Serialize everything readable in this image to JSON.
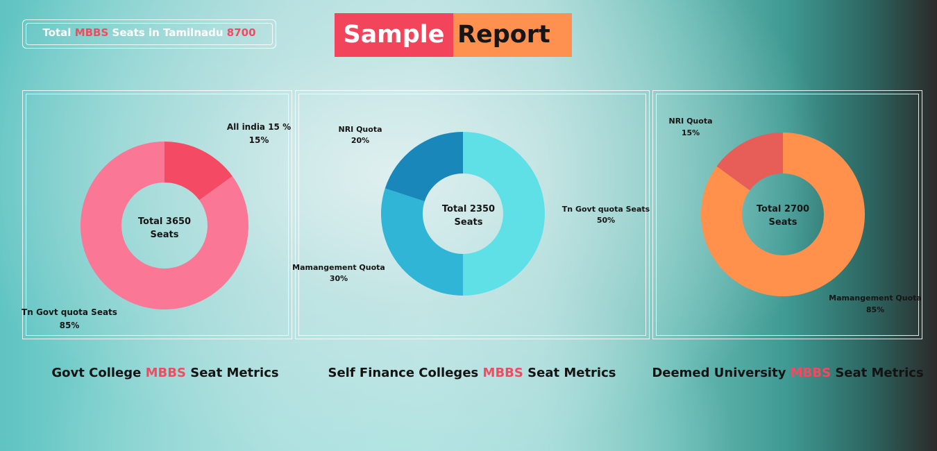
{
  "header": {
    "total_prefix": "Total",
    "total_highlight": "MBBS",
    "total_middle": "Seats in Tamilnadu",
    "total_value": "8700",
    "title_left": "Sample",
    "title_right": "Report"
  },
  "colors": {
    "highlight": "#f24b5f",
    "banner_left": "#f2455c",
    "banner_right": "#ff9150"
  },
  "sections": [
    {
      "prefix": "Govt College",
      "highlight": "MBBS",
      "suffix": "Seat Metrics"
    },
    {
      "prefix": "Self Finance Colleges",
      "highlight": "MBBS",
      "suffix": "Seat Metrics"
    },
    {
      "prefix": "Deemed University",
      "highlight": "MBBS",
      "suffix": "Seat Metrics"
    }
  ],
  "chart_data": [
    {
      "type": "pie",
      "center_line1": "Total 3650",
      "center_line2": "Seats",
      "slices": [
        {
          "label": "All india 15 %",
          "value": 15,
          "value_label": "15%",
          "color": "#f54a63"
        },
        {
          "label": "Tn Govt quota Seats",
          "value": 85,
          "value_label": "85%",
          "color": "#fa7796"
        }
      ]
    },
    {
      "type": "pie",
      "center_line1": "Total 2350",
      "center_line2": "Seats",
      "slices": [
        {
          "label": "Tn Govt quota Seats",
          "value": 50,
          "value_label": "50%",
          "color": "#5ee0e6"
        },
        {
          "label": "Mamangement Quota",
          "value": 30,
          "value_label": "30%",
          "color": "#30b5d7"
        },
        {
          "label": "NRI Quota",
          "value": 20,
          "value_label": "20%",
          "color": "#1a87bb"
        }
      ]
    },
    {
      "type": "pie",
      "center_line1": "Total 2700",
      "center_line2": "Seats",
      "slices": [
        {
          "label": "Mamangement Quota",
          "value": 85,
          "value_label": "85%",
          "color": "#ff914d"
        },
        {
          "label": "NRI Quota",
          "value": 15,
          "value_label": "15%",
          "color": "#e65e57"
        }
      ]
    }
  ]
}
